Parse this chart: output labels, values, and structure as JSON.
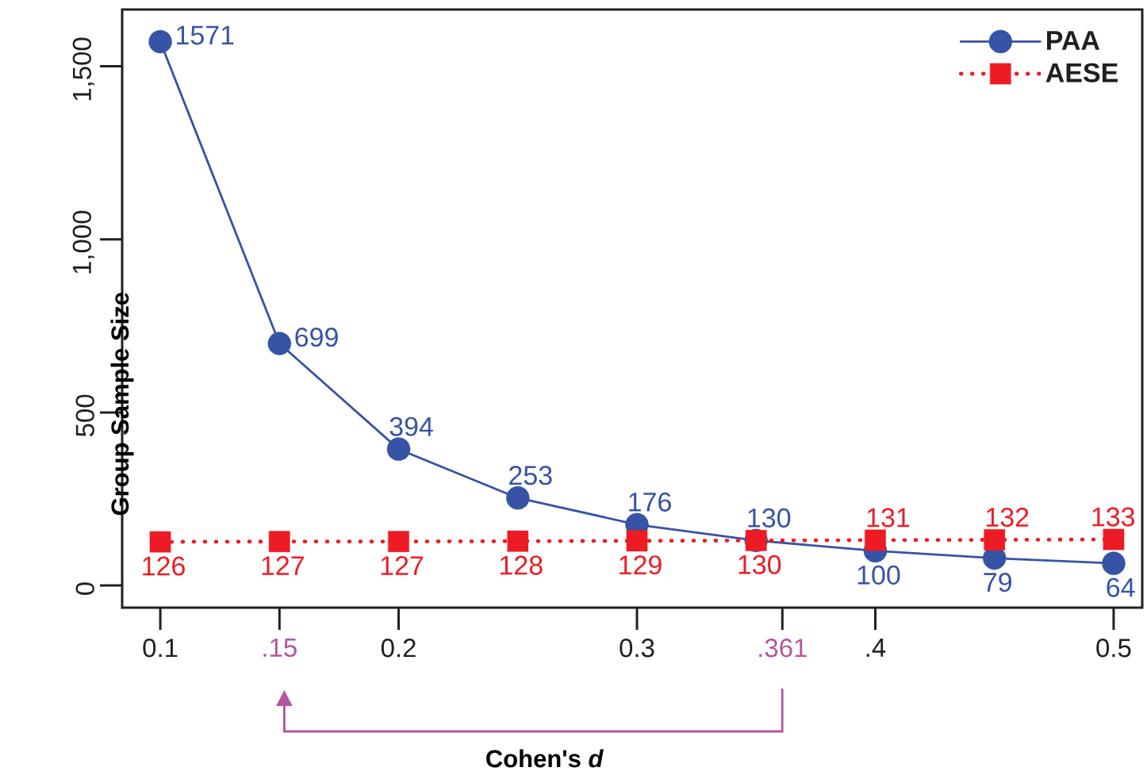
{
  "chart_data": {
    "type": "line",
    "xlabel": "Cohen's *d*",
    "ylabel": "Group Sample Size",
    "x": [
      0.1,
      0.15,
      0.2,
      0.25,
      0.3,
      0.35,
      0.4,
      0.45,
      0.5
    ],
    "series": [
      {
        "name": "PAA",
        "color": "#3653a5",
        "marker": "circle",
        "line_style": "solid",
        "values": [
          1571,
          699,
          394,
          253,
          176,
          130,
          100,
          79,
          64
        ]
      },
      {
        "name": "AESE",
        "color": "#ed1c24",
        "marker": "square",
        "line_style": "dotted",
        "values": [
          126,
          127,
          127,
          128,
          129,
          130,
          131,
          132,
          133
        ]
      }
    ],
    "xlim": [
      0.084,
      0.512
    ],
    "ylim": [
      -64,
      1664
    ],
    "xticks": [
      0.1,
      {
        "value": 0.15,
        "label": ".15"
      },
      0.2,
      0.3,
      {
        "value": 0.361,
        "label": ".361"
      },
      {
        "value": 0.4,
        "label": ".4"
      },
      0.5
    ],
    "yticks": [
      0,
      500,
      {
        "value": 1000,
        "label": "1,000"
      },
      {
        "value": 1500,
        "label": "1,500"
      }
    ],
    "data_labels": true,
    "legend": "top right"
  }
}
